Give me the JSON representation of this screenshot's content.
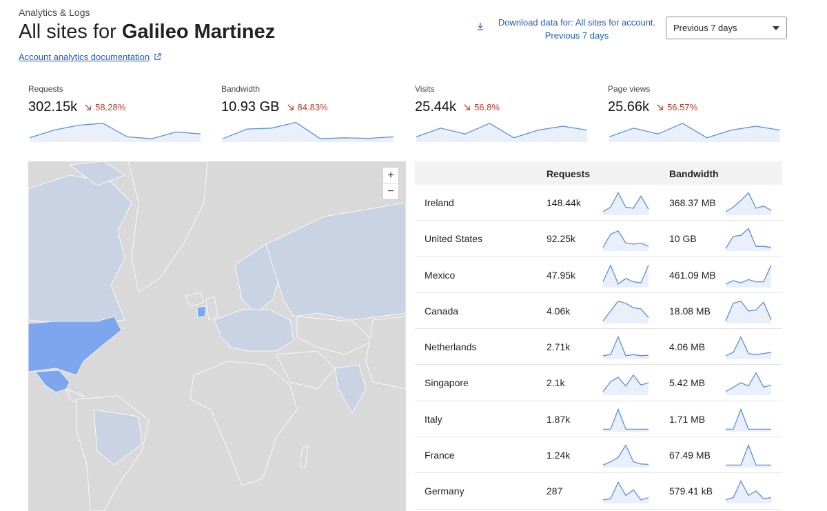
{
  "header": {
    "breadcrumb": "Analytics & Logs",
    "title_prefix": "All sites for ",
    "title_name": "Galileo Martinez",
    "doc_link": "Account analytics documentation",
    "download_line1": "Download data for: All sites for account.",
    "download_line2": "Previous 7 days",
    "range_select": "Previous 7 days"
  },
  "stats": [
    {
      "label": "Requests",
      "value": "302.15k",
      "change": "58.28%",
      "trend": [
        0.15,
        0.55,
        0.8,
        0.9,
        0.2,
        0.1,
        0.45,
        0.35
      ]
    },
    {
      "label": "Bandwidth",
      "value": "10.93 GB",
      "change": "84.83%",
      "trend": [
        0.1,
        0.6,
        0.65,
        0.95,
        0.1,
        0.15,
        0.12,
        0.2
      ]
    },
    {
      "label": "Visits",
      "value": "25.44k",
      "change": "56.8%",
      "trend": [
        0.2,
        0.65,
        0.35,
        0.9,
        0.15,
        0.55,
        0.75,
        0.55
      ]
    },
    {
      "label": "Page views",
      "value": "25.66k",
      "change": "56.57%",
      "trend": [
        0.2,
        0.65,
        0.35,
        0.9,
        0.15,
        0.55,
        0.75,
        0.55
      ]
    }
  ],
  "table": {
    "headers": {
      "country": "",
      "requests": "Requests",
      "bandwidth": "Bandwidth"
    },
    "rows": [
      {
        "country": "Ireland",
        "requests": "148.44k",
        "bandwidth": "368.37 MB",
        "req_trend": [
          0.1,
          0.3,
          0.95,
          0.3,
          0.25,
          0.8,
          0.2
        ],
        "bw_trend": [
          0.1,
          0.3,
          0.6,
          0.95,
          0.25,
          0.35,
          0.15
        ]
      },
      {
        "country": "United States",
        "requests": "92.25k",
        "bandwidth": "10 GB",
        "req_trend": [
          0.1,
          0.7,
          0.85,
          0.3,
          0.25,
          0.3,
          0.15
        ],
        "bw_trend": [
          0.05,
          0.6,
          0.65,
          0.95,
          0.15,
          0.15,
          0.1
        ]
      },
      {
        "country": "Mexico",
        "requests": "47.95k",
        "bandwidth": "461.09 MB",
        "req_trend": [
          0.2,
          0.95,
          0.1,
          0.35,
          0.2,
          0.15,
          0.95
        ],
        "bw_trend": [
          0.1,
          0.25,
          0.15,
          0.3,
          0.2,
          0.2,
          0.95
        ]
      },
      {
        "country": "Canada",
        "requests": "4.06k",
        "bandwidth": "18.08 MB",
        "req_trend": [
          0.05,
          0.5,
          0.95,
          0.85,
          0.65,
          0.6,
          0.2
        ],
        "bw_trend": [
          0.05,
          0.85,
          0.95,
          0.5,
          0.55,
          0.9,
          0.1
        ]
      },
      {
        "country": "Netherlands",
        "requests": "2.71k",
        "bandwidth": "4.06 MB",
        "req_trend": [
          0.1,
          0.15,
          0.95,
          0.1,
          0.15,
          0.1,
          0.12
        ],
        "bw_trend": [
          0.1,
          0.25,
          0.95,
          0.2,
          0.15,
          0.2,
          0.25
        ]
      },
      {
        "country": "Singapore",
        "requests": "2.1k",
        "bandwidth": "5.42 MB",
        "req_trend": [
          0.1,
          0.55,
          0.75,
          0.35,
          0.85,
          0.4,
          0.5
        ],
        "bw_trend": [
          0.1,
          0.3,
          0.5,
          0.35,
          0.95,
          0.3,
          0.4
        ]
      },
      {
        "country": "Italy",
        "requests": "1.87k",
        "bandwidth": "1.71 MB",
        "req_trend": [
          0.05,
          0.05,
          0.95,
          0.05,
          0.05,
          0.05,
          0.05
        ],
        "bw_trend": [
          0.05,
          0.05,
          0.95,
          0.05,
          0.05,
          0.05,
          0.05
        ]
      },
      {
        "country": "France",
        "requests": "1.24k",
        "bandwidth": "67.49 MB",
        "req_trend": [
          0.05,
          0.2,
          0.4,
          0.95,
          0.2,
          0.1,
          0.08
        ],
        "bw_trend": [
          0.05,
          0.05,
          0.05,
          0.95,
          0.05,
          0.05,
          0.05
        ]
      },
      {
        "country": "Germany",
        "requests": "287",
        "bandwidth": "579.41 kB",
        "req_trend": [
          0.1,
          0.15,
          0.9,
          0.3,
          0.55,
          0.1,
          0.2
        ],
        "bw_trend": [
          0.1,
          0.2,
          0.95,
          0.3,
          0.5,
          0.15,
          0.2
        ]
      }
    ]
  },
  "colors": {
    "accent": "#1f5bbf",
    "spark_line": "#5b8fd6",
    "spark_fill": "#e9f0fb",
    "negative": "#c0392b",
    "map_base": "#d9d9d9",
    "map_light": "#c9d3e3",
    "map_highlight": "#7ea6ee"
  }
}
